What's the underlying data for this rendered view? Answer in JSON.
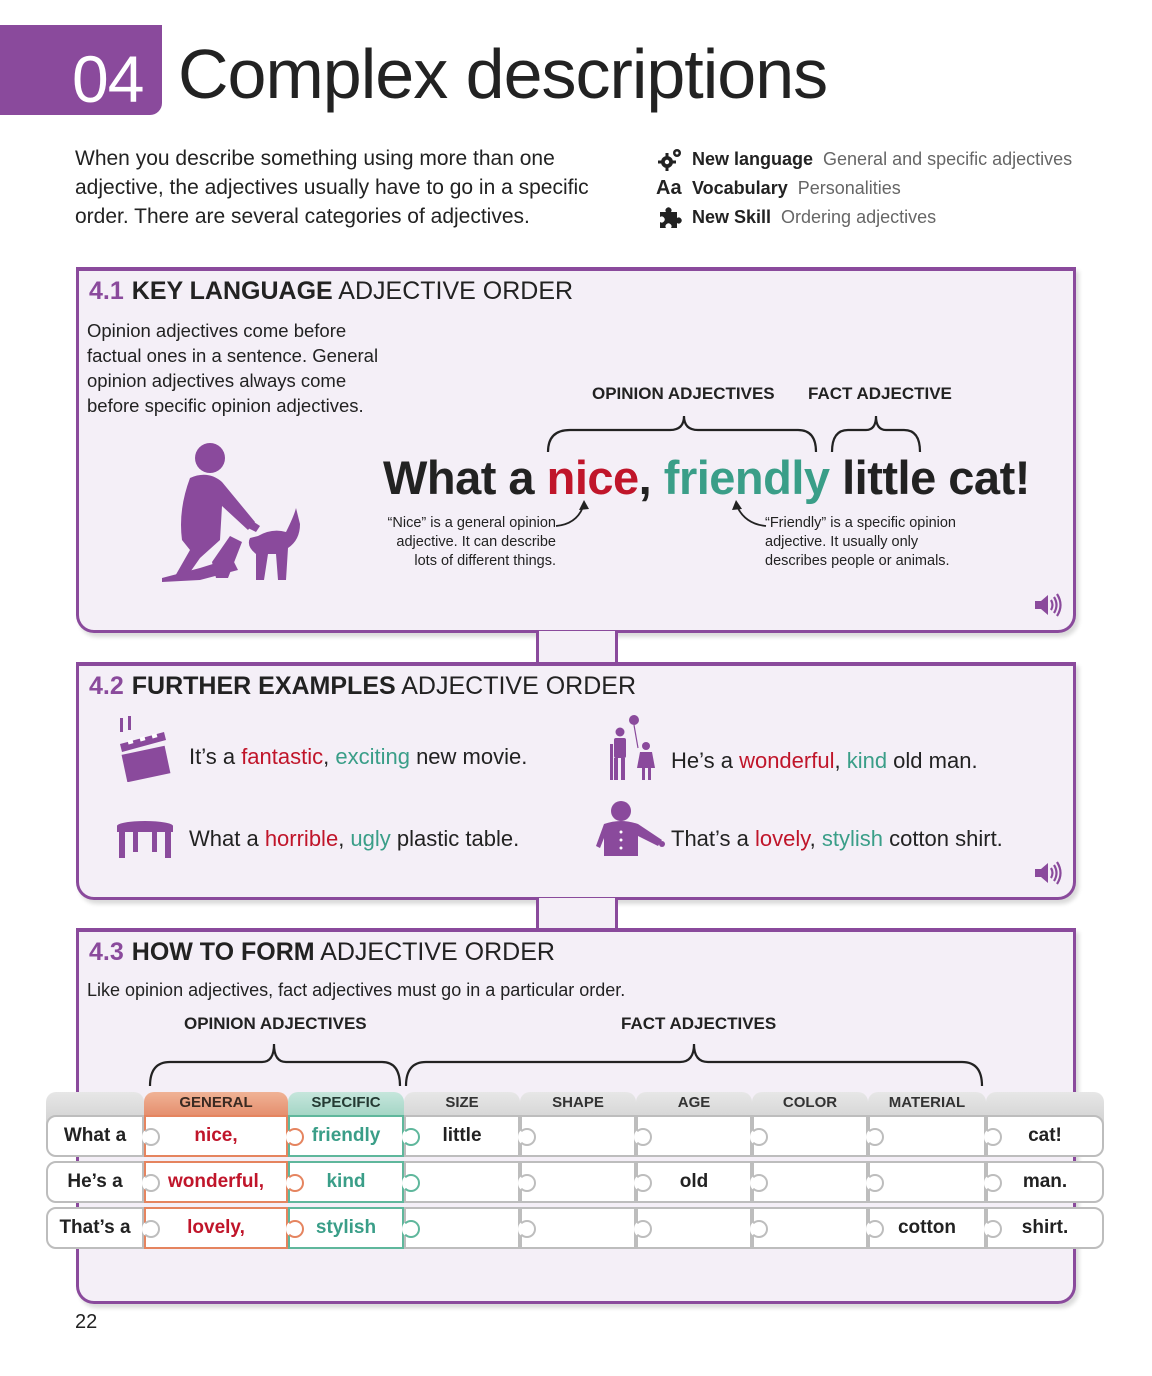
{
  "header": {
    "number": "04",
    "title": "Complex descriptions"
  },
  "intro": "When you describe something using more than one adjective, the adjectives usually have to go in a specific order. There are several categories of adjectives.",
  "meta": [
    {
      "icon": "gears-icon",
      "key": "New language",
      "value": "General and specific adjectives"
    },
    {
      "icon": "aa-icon",
      "key": "Vocabulary",
      "value": "Personalities"
    },
    {
      "icon": "puzzle-icon",
      "key": "New Skill",
      "value": "Ordering adjectives"
    }
  ],
  "section1": {
    "number": "4.1",
    "bold": "KEY LANGUAGE",
    "rest": "ADJECTIVE ORDER",
    "description": "Opinion adjectives come before factual ones in a sentence. General opinion adjectives always come before specific opinion adjectives.",
    "opinion_label": "OPINION ADJECTIVES",
    "fact_label": "FACT ADJECTIVE",
    "sentence": {
      "start": "What a ",
      "general": "nice",
      "comma": ", ",
      "specific": "friendly",
      "rest": " little cat!"
    },
    "note_general": "“Nice” is a general opinion adjective. It can describe lots of different things.",
    "note_specific": "“Friendly” is a specific opinion adjective. It usually only describes people or animals."
  },
  "section2": {
    "number": "4.2",
    "bold": "FURTHER EXAMPLES",
    "rest": "ADJECTIVE ORDER",
    "examples": [
      {
        "icon": "clapperboard-icon",
        "start": "It’s a ",
        "general": "fantastic",
        "comma": ", ",
        "specific": "exciting",
        "rest": " new movie."
      },
      {
        "icon": "old-man-balloon-icon",
        "start": "He’s a ",
        "general": "wonderful",
        "comma": ", ",
        "specific": "kind",
        "rest": " old man."
      },
      {
        "icon": "table-icon",
        "start": "What a ",
        "general": "horrible",
        "comma": ", ",
        "specific": "ugly",
        "rest": " plastic table."
      },
      {
        "icon": "shirt-person-icon",
        "start": "That’s a ",
        "general": "lovely",
        "comma": ", ",
        "specific": "stylish",
        "rest": " cotton shirt."
      }
    ]
  },
  "section3": {
    "number": "4.3",
    "bold": "HOW TO FORM",
    "rest": "ADJECTIVE ORDER",
    "description": "Like opinion adjectives, fact adjectives must go in a particular order.",
    "opinion_label": "OPINION ADJECTIVES",
    "fact_label": "FACT ADJECTIVES",
    "columns": [
      "",
      "GENERAL",
      "SPECIFIC",
      "SIZE",
      "SHAPE",
      "AGE",
      "COLOR",
      "MATERIAL",
      ""
    ],
    "rows": [
      [
        "What a",
        "nice,",
        "friendly",
        "little",
        "",
        "",
        "",
        "",
        "cat!"
      ],
      [
        "He’s a",
        "wonderful,",
        "kind",
        "",
        "",
        "old",
        "",
        "",
        "man."
      ],
      [
        "That’s a",
        "lovely,",
        "stylish",
        "",
        "",
        "",
        "",
        "cotton",
        "shirt."
      ]
    ]
  },
  "page_number": "22",
  "colors": {
    "purple": "#8a4a9c",
    "general_red": "#c0152a",
    "specific_green": "#3a9e88"
  }
}
